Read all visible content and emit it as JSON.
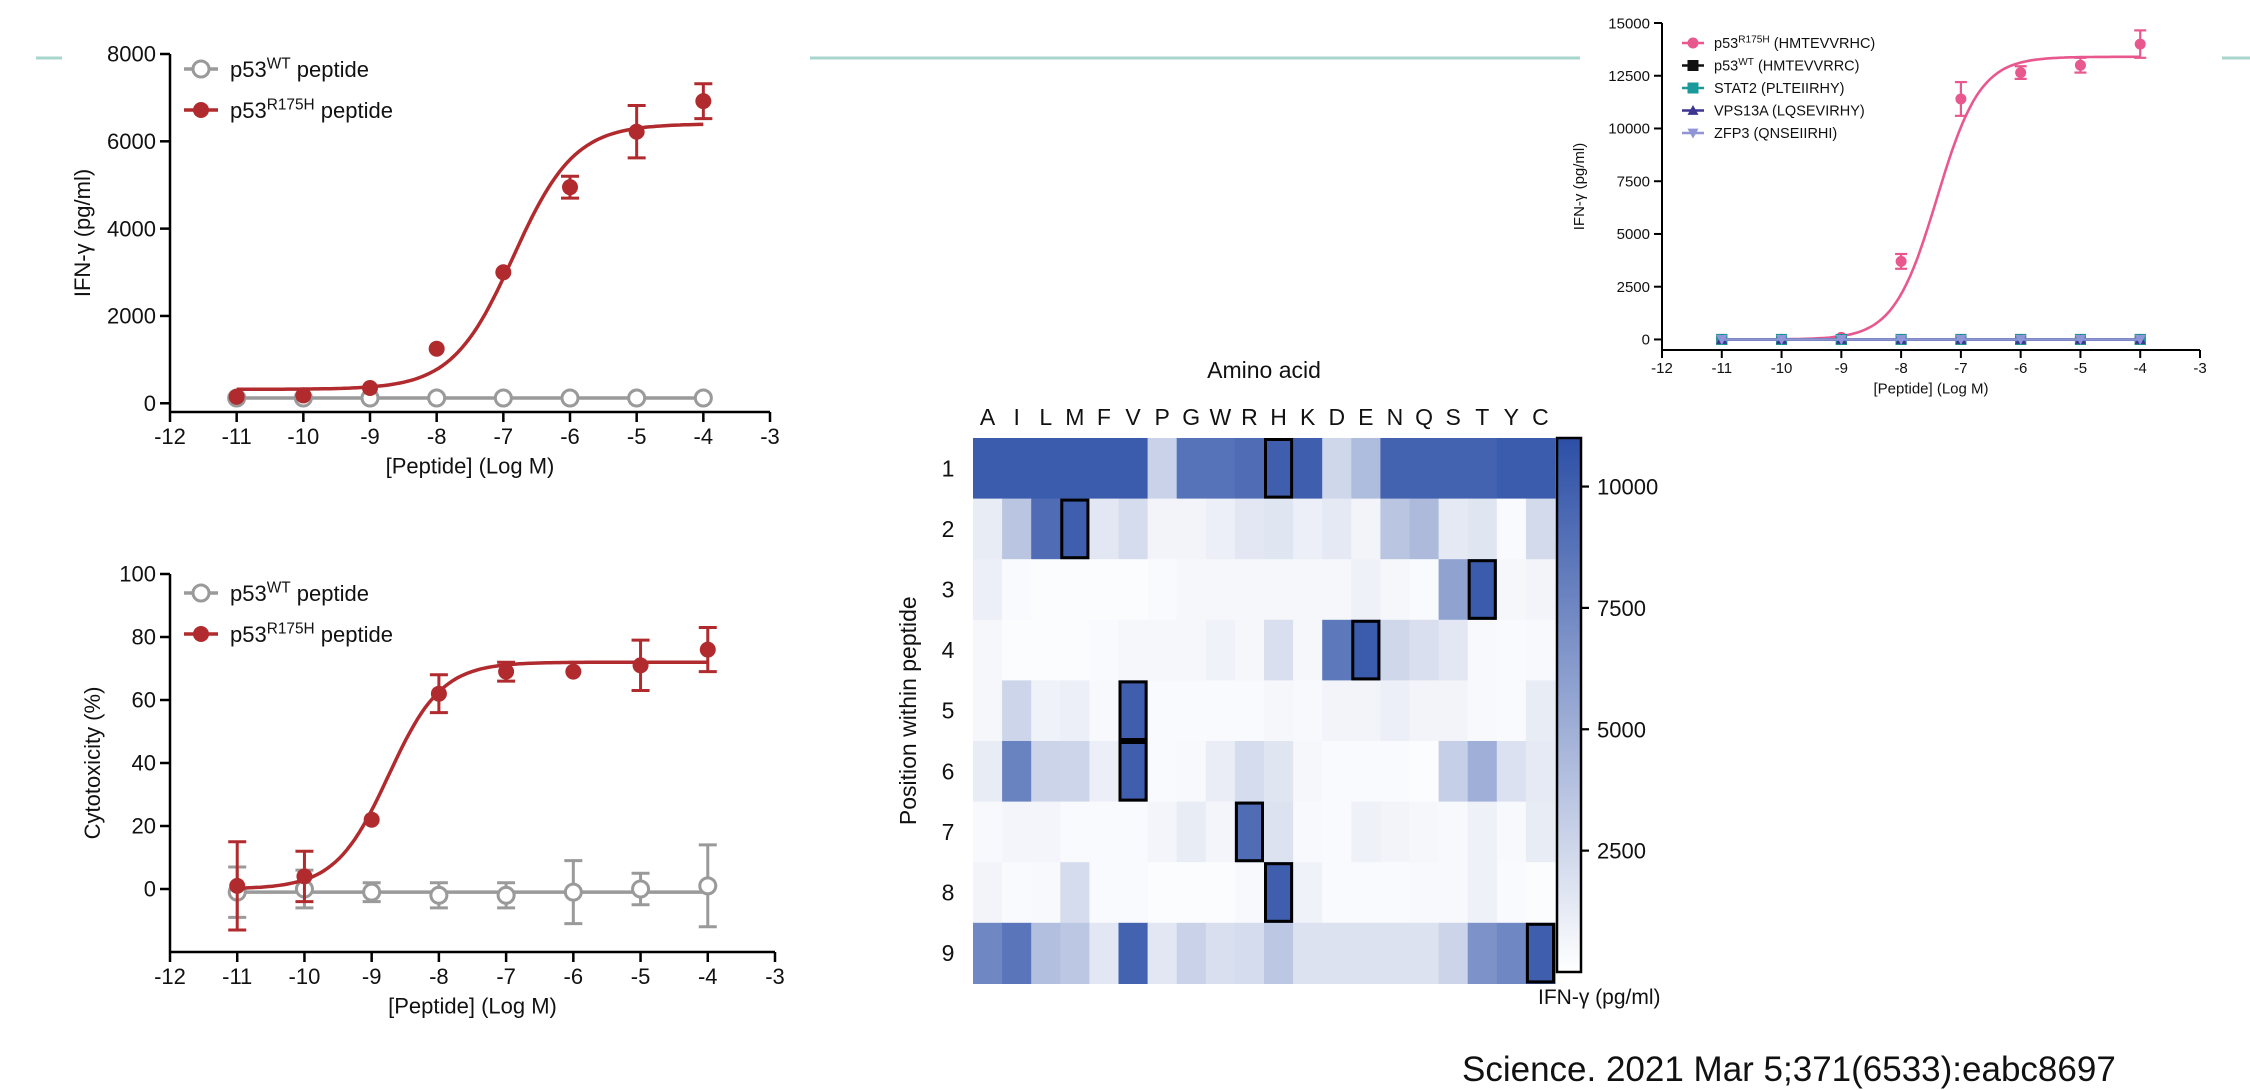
{
  "colors": {
    "wt": "#9a9a9a",
    "mut": "#b02a2e",
    "pink": "#e8588e",
    "black": "#111111",
    "teal": "#1a9a9a",
    "navy": "#3d3590",
    "lavender": "#8f95d6",
    "heat_high": "#2c4fa6",
    "accent_line": "#a8d5cc"
  },
  "citation": "Science. 2021 Mar 5;371(6533):eabc8697",
  "chart_data": [
    {
      "type": "line",
      "xlabel": "[Peptide] (Log M)",
      "ylabel": "IFN-γ (pg/ml)",
      "xlim": [
        -12,
        -3
      ],
      "ylim": [
        -200,
        8000
      ],
      "xticks": [
        "-12",
        "-11",
        "-10",
        "-9",
        "-8",
        "-7",
        "-6",
        "-5",
        "-4",
        "-3"
      ],
      "yticks": [
        "0",
        "2000",
        "4000",
        "6000",
        "8000"
      ],
      "legend_position": "top-left",
      "series": [
        {
          "name": "p53WT peptide",
          "name_base": "p53",
          "name_sup": "WT",
          "name_tail": " peptide",
          "color_key": "wt",
          "marker": "open-circle",
          "x": [
            -11,
            -10,
            -9,
            -8,
            -7,
            -6,
            -5,
            -4
          ],
          "y": [
            120,
            120,
            120,
            120,
            120,
            120,
            120,
            120
          ],
          "err": [
            0,
            0,
            0,
            0,
            0,
            0,
            0,
            0
          ],
          "fit": {
            "bottom": 120,
            "top": 120,
            "logec50": -7,
            "hill": 1
          }
        },
        {
          "name": "p53R175H peptide",
          "name_base": "p53",
          "name_sup": "R175H",
          "name_tail": " peptide",
          "color_key": "mut",
          "marker": "filled-circle",
          "x": [
            -11,
            -10,
            -9,
            -8,
            -7,
            -6,
            -5,
            -4
          ],
          "y": [
            150,
            180,
            350,
            1250,
            3000,
            4950,
            6220,
            6920
          ],
          "err": [
            0,
            0,
            0,
            0,
            0,
            250,
            600,
            400
          ],
          "fit": {
            "bottom": 320,
            "top": 6400,
            "logec50": -6.85,
            "hill": 0.95
          }
        }
      ]
    },
    {
      "type": "line",
      "xlabel": "[Peptide] (Log M)",
      "ylabel": "Cytotoxicity (%)",
      "xlim": [
        -12,
        -3
      ],
      "ylim": [
        -20,
        100
      ],
      "xticks": [
        "-12",
        "-11",
        "-10",
        "-9",
        "-8",
        "-7",
        "-6",
        "-5",
        "-4",
        "-3"
      ],
      "yticks": [
        "0",
        "20",
        "40",
        "60",
        "80",
        "100"
      ],
      "legend_position": "top-left",
      "series": [
        {
          "name": "p53WT peptide",
          "name_base": "p53",
          "name_sup": "WT",
          "name_tail": " peptide",
          "color_key": "wt",
          "marker": "open-circle",
          "x": [
            -11,
            -10,
            -9,
            -8,
            -7,
            -6,
            -5,
            -4
          ],
          "y": [
            -1,
            0,
            -1,
            -2,
            -2,
            -1,
            0,
            1
          ],
          "err": [
            8,
            6,
            3,
            4,
            4,
            10,
            5,
            13
          ],
          "fit": {
            "bottom": -1,
            "top": -1,
            "logec50": -7,
            "hill": 1
          }
        },
        {
          "name": "p53R175H peptide",
          "name_base": "p53",
          "name_sup": "R175H",
          "name_tail": " peptide",
          "color_key": "mut",
          "marker": "filled-circle",
          "x": [
            -11,
            -10,
            -9,
            -8,
            -7,
            -6,
            -5,
            -4
          ],
          "y": [
            1,
            4,
            22,
            62,
            69,
            69,
            71,
            76
          ],
          "err": [
            14,
            8,
            0,
            6,
            3,
            0,
            8,
            7
          ],
          "fit": {
            "bottom": 0,
            "top": 72,
            "logec50": -8.75,
            "hill": 1.1
          }
        }
      ]
    },
    {
      "type": "heatmap",
      "title": "Amino acid",
      "xlabel": "Amino acid",
      "ylabel": "Position within peptide",
      "x": [
        "A",
        "I",
        "L",
        "M",
        "F",
        "V",
        "P",
        "G",
        "W",
        "R",
        "H",
        "K",
        "D",
        "E",
        "N",
        "Q",
        "S",
        "T",
        "Y",
        "C"
      ],
      "y": [
        "1",
        "2",
        "3",
        "4",
        "5",
        "6",
        "7",
        "8",
        "9"
      ],
      "colorbar_label": "IFN-γ (pg/ml)",
      "colorbar_ticks": [
        "10000",
        "7500",
        "5000",
        "2500"
      ],
      "colorbar_values": [
        10000,
        7500,
        5000,
        2500
      ],
      "zlim": [
        0,
        11000
      ],
      "values": [
        [
          10200,
          10200,
          10200,
          10200,
          10200,
          10200,
          2800,
          8800,
          8800,
          9200,
          10000,
          10000,
          2500,
          4200,
          9800,
          9800,
          9800,
          9800,
          10200,
          10200
        ],
        [
          1200,
          3600,
          9200,
          10000,
          1500,
          2200,
          700,
          700,
          1000,
          1500,
          1600,
          1000,
          1400,
          700,
          3600,
          4300,
          1400,
          1600,
          300,
          2300
        ],
        [
          1000,
          300,
          200,
          200,
          200,
          200,
          300,
          500,
          500,
          500,
          500,
          500,
          500,
          900,
          500,
          300,
          5800,
          10200,
          500,
          700
        ],
        [
          500,
          200,
          200,
          200,
          300,
          500,
          500,
          500,
          800,
          500,
          2000,
          500,
          8400,
          10200,
          2500,
          2000,
          1500,
          400,
          300,
          400
        ],
        [
          500,
          2600,
          800,
          1000,
          400,
          10000,
          300,
          300,
          300,
          300,
          500,
          400,
          700,
          700,
          1000,
          700,
          700,
          400,
          300,
          1200
        ],
        [
          1200,
          7800,
          2700,
          2600,
          1000,
          10000,
          300,
          400,
          1100,
          2200,
          1600,
          500,
          300,
          300,
          300,
          200,
          3000,
          5000,
          1900,
          1300
        ],
        [
          400,
          600,
          600,
          300,
          300,
          300,
          600,
          1200,
          600,
          9200,
          1800,
          400,
          300,
          900,
          700,
          500,
          400,
          900,
          400,
          1200
        ],
        [
          700,
          300,
          400,
          2200,
          300,
          300,
          200,
          200,
          200,
          400,
          10000,
          800,
          300,
          300,
          300,
          400,
          400,
          900,
          300,
          200
        ],
        [
          7500,
          8600,
          4000,
          3500,
          1500,
          9800,
          1500,
          2800,
          2000,
          2200,
          3500,
          1800,
          1800,
          1800,
          1800,
          1800,
          2700,
          6800,
          7500,
          10000
        ]
      ],
      "highlighted": [
        [
          0,
          10
        ],
        [
          1,
          3
        ],
        [
          2,
          17
        ],
        [
          3,
          13
        ],
        [
          4,
          5
        ],
        [
          5,
          5
        ],
        [
          6,
          9
        ],
        [
          7,
          10
        ],
        [
          8,
          19
        ]
      ]
    },
    {
      "type": "line",
      "xlabel": "[Peptide] (Log M)",
      "ylabel": "IFN-γ (pg/ml)",
      "xlim": [
        -12,
        -3
      ],
      "ylim": [
        -500,
        15000
      ],
      "xticks": [
        "-12",
        "-11",
        "-10",
        "-9",
        "-8",
        "-7",
        "-6",
        "-5",
        "-4",
        "-3"
      ],
      "yticks": [
        "0",
        "2500",
        "5000",
        "7500",
        "10000",
        "12500",
        "15000"
      ],
      "legend_position": "top-left",
      "series": [
        {
          "name": "p53R175H (HMTEVVRHC)",
          "name_base": "p53",
          "name_sup": "R175H",
          "name_tail": " (HMTEVVRHC)",
          "color_key": "pink",
          "marker": "filled-circle",
          "x": [
            -11,
            -10,
            -9,
            -8,
            -7,
            -6,
            -5,
            -4
          ],
          "y": [
            0,
            0,
            100,
            3700,
            11400,
            12650,
            13000,
            14000
          ],
          "err": [
            0,
            0,
            0,
            350,
            800,
            300,
            350,
            650
          ],
          "fit": {
            "bottom": 0,
            "top": 13400,
            "logec50": -7.4,
            "hill": 1.2
          }
        },
        {
          "name": "p53WT (HMTEVVRRC)",
          "name_base": "p53",
          "name_sup": "WT",
          "name_tail": " (HMTEVVRRC)",
          "color_key": "black",
          "marker": "filled-square",
          "x": [
            -11,
            -10,
            -9,
            -8,
            -7,
            -6,
            -5,
            -4
          ],
          "y": [
            0,
            0,
            0,
            0,
            0,
            0,
            0,
            0
          ],
          "err": [
            0,
            0,
            0,
            0,
            0,
            0,
            0,
            0
          ],
          "fit": {
            "bottom": 0,
            "top": 0,
            "logec50": -7,
            "hill": 1
          }
        },
        {
          "name": "STAT2 (PLTEIIRHY)",
          "name_base": "STAT2 (PLTEIIRHY)",
          "name_sup": "",
          "name_tail": "",
          "color_key": "teal",
          "marker": "filled-square",
          "x": [
            -11,
            -10,
            -9,
            -8,
            -7,
            -6,
            -5,
            -4
          ],
          "y": [
            0,
            0,
            0,
            0,
            0,
            0,
            0,
            0
          ],
          "err": [
            0,
            0,
            0,
            0,
            0,
            0,
            0,
            0
          ],
          "fit": {
            "bottom": 0,
            "top": 0,
            "logec50": -7,
            "hill": 1
          }
        },
        {
          "name": "VPS13A (LQSEVIRHY)",
          "name_base": "VPS13A (LQSEVIRHY)",
          "name_sup": "",
          "name_tail": "",
          "color_key": "navy",
          "marker": "filled-triangle",
          "x": [
            -11,
            -10,
            -9,
            -8,
            -7,
            -6,
            -5,
            -4
          ],
          "y": [
            0,
            0,
            0,
            0,
            0,
            0,
            0,
            0
          ],
          "err": [
            0,
            0,
            0,
            0,
            0,
            0,
            0,
            0
          ],
          "fit": {
            "bottom": 0,
            "top": 0,
            "logec50": -7,
            "hill": 1
          }
        },
        {
          "name": "ZFP3 (QNSEIIRHI)",
          "name_base": "ZFP3 (QNSEIIRHI)",
          "name_sup": "",
          "name_tail": "",
          "color_key": "lavender",
          "marker": "filled-triangle-down",
          "x": [
            -11,
            -10,
            -9,
            -8,
            -7,
            -6,
            -5,
            -4
          ],
          "y": [
            0,
            0,
            0,
            0,
            0,
            0,
            0,
            0
          ],
          "err": [
            0,
            0,
            0,
            0,
            0,
            0,
            0,
            0
          ],
          "fit": {
            "bottom": 0,
            "top": 0,
            "logec50": -7,
            "hill": 1
          }
        }
      ]
    }
  ]
}
